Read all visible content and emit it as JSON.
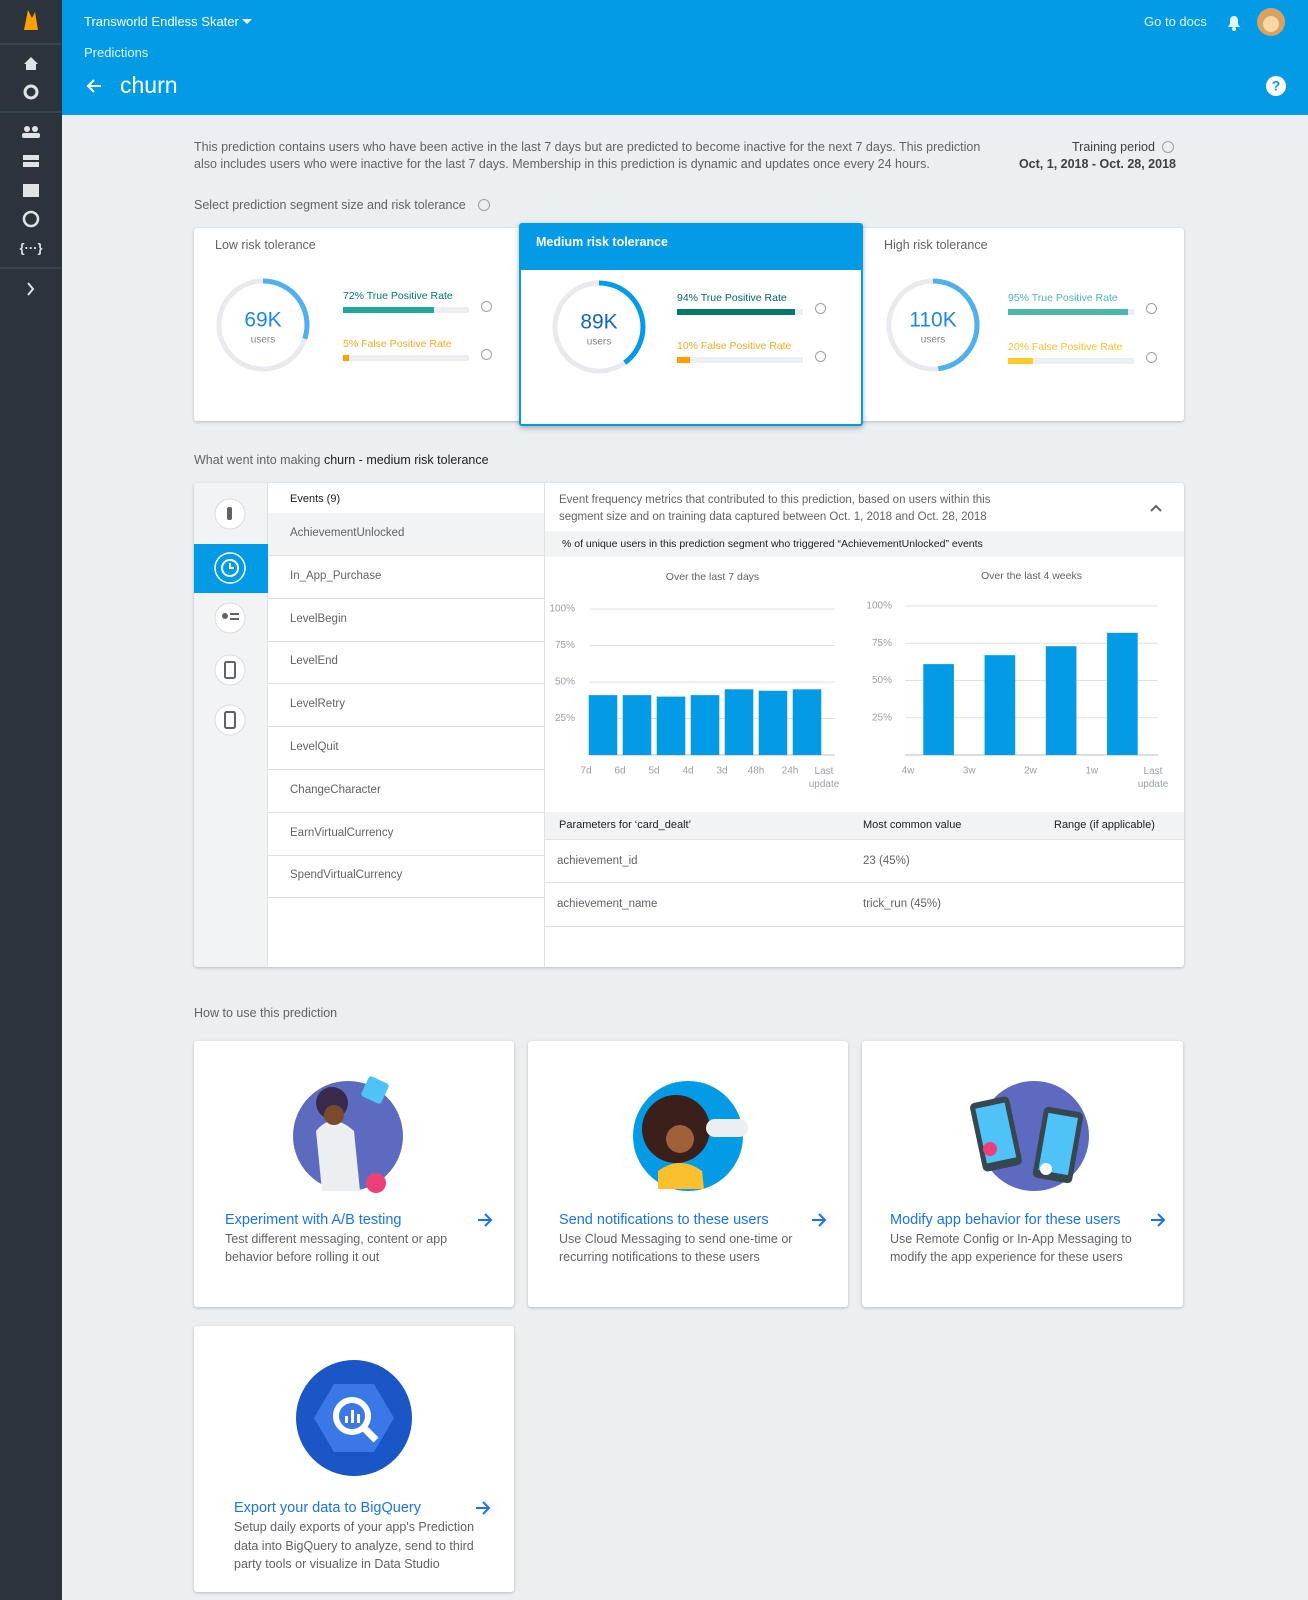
{
  "header": {
    "project": "Transworld Endless Skater",
    "breadcrumb": "Predictions",
    "title": "churn",
    "docs_link": "Go to docs"
  },
  "intro": {
    "description": "This prediction contains users who have been active in the last 7 days but are predicted to become inactive for the next 7 days. This prediction also includes users who were inactive for the last 7 days. Membership in this prediction is dynamic and updates once every 24 hours.",
    "training_label": "Training period",
    "training_range": "Oct, 1, 2018 - Oct. 28, 2018"
  },
  "segment": {
    "label": "Select prediction segment size and risk tolerance",
    "selected": 1,
    "options": [
      {
        "title": "Low risk tolerance",
        "users": "69K",
        "unit": "users",
        "true_positive": {
          "value": 72,
          "label": "72% True Positive Rate"
        },
        "false_positive": {
          "value": 5,
          "label": "5% False Positive Rate"
        }
      },
      {
        "title": "Medium risk tolerance",
        "users": "89K",
        "unit": "users",
        "true_positive": {
          "value": 94,
          "label": "94% True Positive Rate"
        },
        "false_positive": {
          "value": 10,
          "label": "10% False Positive Rate"
        }
      },
      {
        "title": "High risk tolerance",
        "users": "110K",
        "unit": "users",
        "true_positive": {
          "value": 95,
          "label": "95% True Positive Rate"
        },
        "false_positive": {
          "value": 20,
          "label": "20% False Positive Rate"
        }
      }
    ]
  },
  "details": {
    "heading": "What went into making",
    "heading_prediction": "churn - medium risk tolerance"
  },
  "events": {
    "header": "Events (9)",
    "selected": 0,
    "items": [
      "AchievementUnlocked",
      "In_App_Purchase",
      "LevelBegin",
      "LevelEnd",
      "LevelRetry",
      "LevelQuit",
      "ChangeCharacter",
      "EarnVirtualCurrency",
      "SpendVirtualCurrency"
    ]
  },
  "metrics": {
    "description": "Event frequency metrics that contributed to this prediction, based on users within this segment size and on training data captured between Oct. 1, 2018 and Oct. 28, 2018",
    "subheader": "% of unique users in this prediction segment who triggered “AchievementUnlocked” events",
    "charts": [
      {
        "type": "bar",
        "title": "Over the last 7 days",
        "x_labels": [
          "7d",
          "6d",
          "5d",
          "4d",
          "3d",
          "48h",
          "24h",
          "Last update"
        ],
        "values": [
          41,
          41,
          40,
          41,
          45,
          44,
          45
        ],
        "color": "#039be5",
        "ylim": [
          0,
          100
        ],
        "yticks": [
          {
            "value": 25,
            "label": "25%"
          },
          {
            "value": 50,
            "label": "50%"
          },
          {
            "value": 75,
            "label": "75%"
          },
          {
            "value": 100,
            "label": "100%"
          }
        ],
        "grid": true
      },
      {
        "type": "bar",
        "title": "Over the last 4 weeks",
        "x_labels": [
          "4w",
          "3w",
          "2w",
          "1w",
          "Last update"
        ],
        "values": [
          61,
          67,
          73,
          82
        ],
        "color": "#039be5",
        "ylim": [
          0,
          100
        ],
        "yticks": [
          {
            "value": 25,
            "label": "25%"
          },
          {
            "value": 50,
            "label": "50%"
          },
          {
            "value": 75,
            "label": "75%"
          },
          {
            "value": 100,
            "label": "100%"
          }
        ],
        "grid": true
      }
    ]
  },
  "parameters": {
    "headers": [
      "Parameters for ‘card_dealt’",
      "Most common value",
      "Range (if applicable)"
    ],
    "rows": [
      [
        "achievement_id",
        "23 (45%)"
      ],
      [
        "achievement_name",
        "trick_run (45%)"
      ]
    ]
  },
  "how_to": {
    "heading": "How to use this prediction",
    "cards": [
      {
        "title": "Experiment with A/B testing",
        "description": "Test different messaging, content or app behavior before rolling it out"
      },
      {
        "title": "Send notifications to these users",
        "description": "Use Cloud Messaging to send one-time or recurring notifications to these users"
      },
      {
        "title": "Modify app behavior for these users",
        "description": "Use Remote Config or In-App Messaging to modify the app experience for these users"
      },
      {
        "title": "Export your data to BigQuery",
        "description": "Setup daily exports of your app's Prediction data into BigQuery to analyze, send to third party tools or visualize in Data Studio"
      }
    ]
  }
}
